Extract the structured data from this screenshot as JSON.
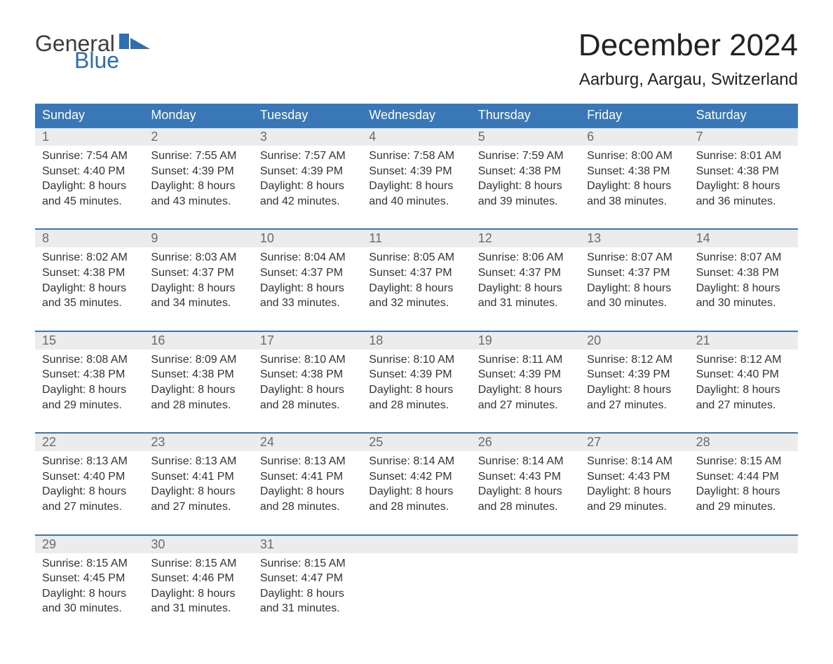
{
  "logo": {
    "word1": "General",
    "word2": "Blue",
    "accent_color": "#2f6fae"
  },
  "title": "December 2024",
  "location": "Aarburg, Aargau, Switzerland",
  "colors": {
    "header_bg": "#3a77b6",
    "header_text": "#ffffff",
    "daynum_bg": "#ececec",
    "daynum_border": "#3a77b6",
    "text": "#333333",
    "muted": "#6b6b6b"
  },
  "weekdays": [
    "Sunday",
    "Monday",
    "Tuesday",
    "Wednesday",
    "Thursday",
    "Friday",
    "Saturday"
  ],
  "weeks": [
    [
      {
        "day": "1",
        "sunrise": "Sunrise: 7:54 AM",
        "sunset": "Sunset: 4:40 PM",
        "daylight1": "Daylight: 8 hours",
        "daylight2": "and 45 minutes."
      },
      {
        "day": "2",
        "sunrise": "Sunrise: 7:55 AM",
        "sunset": "Sunset: 4:39 PM",
        "daylight1": "Daylight: 8 hours",
        "daylight2": "and 43 minutes."
      },
      {
        "day": "3",
        "sunrise": "Sunrise: 7:57 AM",
        "sunset": "Sunset: 4:39 PM",
        "daylight1": "Daylight: 8 hours",
        "daylight2": "and 42 minutes."
      },
      {
        "day": "4",
        "sunrise": "Sunrise: 7:58 AM",
        "sunset": "Sunset: 4:39 PM",
        "daylight1": "Daylight: 8 hours",
        "daylight2": "and 40 minutes."
      },
      {
        "day": "5",
        "sunrise": "Sunrise: 7:59 AM",
        "sunset": "Sunset: 4:38 PM",
        "daylight1": "Daylight: 8 hours",
        "daylight2": "and 39 minutes."
      },
      {
        "day": "6",
        "sunrise": "Sunrise: 8:00 AM",
        "sunset": "Sunset: 4:38 PM",
        "daylight1": "Daylight: 8 hours",
        "daylight2": "and 38 minutes."
      },
      {
        "day": "7",
        "sunrise": "Sunrise: 8:01 AM",
        "sunset": "Sunset: 4:38 PM",
        "daylight1": "Daylight: 8 hours",
        "daylight2": "and 36 minutes."
      }
    ],
    [
      {
        "day": "8",
        "sunrise": "Sunrise: 8:02 AM",
        "sunset": "Sunset: 4:38 PM",
        "daylight1": "Daylight: 8 hours",
        "daylight2": "and 35 minutes."
      },
      {
        "day": "9",
        "sunrise": "Sunrise: 8:03 AM",
        "sunset": "Sunset: 4:37 PM",
        "daylight1": "Daylight: 8 hours",
        "daylight2": "and 34 minutes."
      },
      {
        "day": "10",
        "sunrise": "Sunrise: 8:04 AM",
        "sunset": "Sunset: 4:37 PM",
        "daylight1": "Daylight: 8 hours",
        "daylight2": "and 33 minutes."
      },
      {
        "day": "11",
        "sunrise": "Sunrise: 8:05 AM",
        "sunset": "Sunset: 4:37 PM",
        "daylight1": "Daylight: 8 hours",
        "daylight2": "and 32 minutes."
      },
      {
        "day": "12",
        "sunrise": "Sunrise: 8:06 AM",
        "sunset": "Sunset: 4:37 PM",
        "daylight1": "Daylight: 8 hours",
        "daylight2": "and 31 minutes."
      },
      {
        "day": "13",
        "sunrise": "Sunrise: 8:07 AM",
        "sunset": "Sunset: 4:37 PM",
        "daylight1": "Daylight: 8 hours",
        "daylight2": "and 30 minutes."
      },
      {
        "day": "14",
        "sunrise": "Sunrise: 8:07 AM",
        "sunset": "Sunset: 4:38 PM",
        "daylight1": "Daylight: 8 hours",
        "daylight2": "and 30 minutes."
      }
    ],
    [
      {
        "day": "15",
        "sunrise": "Sunrise: 8:08 AM",
        "sunset": "Sunset: 4:38 PM",
        "daylight1": "Daylight: 8 hours",
        "daylight2": "and 29 minutes."
      },
      {
        "day": "16",
        "sunrise": "Sunrise: 8:09 AM",
        "sunset": "Sunset: 4:38 PM",
        "daylight1": "Daylight: 8 hours",
        "daylight2": "and 28 minutes."
      },
      {
        "day": "17",
        "sunrise": "Sunrise: 8:10 AM",
        "sunset": "Sunset: 4:38 PM",
        "daylight1": "Daylight: 8 hours",
        "daylight2": "and 28 minutes."
      },
      {
        "day": "18",
        "sunrise": "Sunrise: 8:10 AM",
        "sunset": "Sunset: 4:39 PM",
        "daylight1": "Daylight: 8 hours",
        "daylight2": "and 28 minutes."
      },
      {
        "day": "19",
        "sunrise": "Sunrise: 8:11 AM",
        "sunset": "Sunset: 4:39 PM",
        "daylight1": "Daylight: 8 hours",
        "daylight2": "and 27 minutes."
      },
      {
        "day": "20",
        "sunrise": "Sunrise: 8:12 AM",
        "sunset": "Sunset: 4:39 PM",
        "daylight1": "Daylight: 8 hours",
        "daylight2": "and 27 minutes."
      },
      {
        "day": "21",
        "sunrise": "Sunrise: 8:12 AM",
        "sunset": "Sunset: 4:40 PM",
        "daylight1": "Daylight: 8 hours",
        "daylight2": "and 27 minutes."
      }
    ],
    [
      {
        "day": "22",
        "sunrise": "Sunrise: 8:13 AM",
        "sunset": "Sunset: 4:40 PM",
        "daylight1": "Daylight: 8 hours",
        "daylight2": "and 27 minutes."
      },
      {
        "day": "23",
        "sunrise": "Sunrise: 8:13 AM",
        "sunset": "Sunset: 4:41 PM",
        "daylight1": "Daylight: 8 hours",
        "daylight2": "and 27 minutes."
      },
      {
        "day": "24",
        "sunrise": "Sunrise: 8:13 AM",
        "sunset": "Sunset: 4:41 PM",
        "daylight1": "Daylight: 8 hours",
        "daylight2": "and 28 minutes."
      },
      {
        "day": "25",
        "sunrise": "Sunrise: 8:14 AM",
        "sunset": "Sunset: 4:42 PM",
        "daylight1": "Daylight: 8 hours",
        "daylight2": "and 28 minutes."
      },
      {
        "day": "26",
        "sunrise": "Sunrise: 8:14 AM",
        "sunset": "Sunset: 4:43 PM",
        "daylight1": "Daylight: 8 hours",
        "daylight2": "and 28 minutes."
      },
      {
        "day": "27",
        "sunrise": "Sunrise: 8:14 AM",
        "sunset": "Sunset: 4:43 PM",
        "daylight1": "Daylight: 8 hours",
        "daylight2": "and 29 minutes."
      },
      {
        "day": "28",
        "sunrise": "Sunrise: 8:15 AM",
        "sunset": "Sunset: 4:44 PM",
        "daylight1": "Daylight: 8 hours",
        "daylight2": "and 29 minutes."
      }
    ],
    [
      {
        "day": "29",
        "sunrise": "Sunrise: 8:15 AM",
        "sunset": "Sunset: 4:45 PM",
        "daylight1": "Daylight: 8 hours",
        "daylight2": "and 30 minutes."
      },
      {
        "day": "30",
        "sunrise": "Sunrise: 8:15 AM",
        "sunset": "Sunset: 4:46 PM",
        "daylight1": "Daylight: 8 hours",
        "daylight2": "and 31 minutes."
      },
      {
        "day": "31",
        "sunrise": "Sunrise: 8:15 AM",
        "sunset": "Sunset: 4:47 PM",
        "daylight1": "Daylight: 8 hours",
        "daylight2": "and 31 minutes."
      },
      null,
      null,
      null,
      null
    ]
  ]
}
